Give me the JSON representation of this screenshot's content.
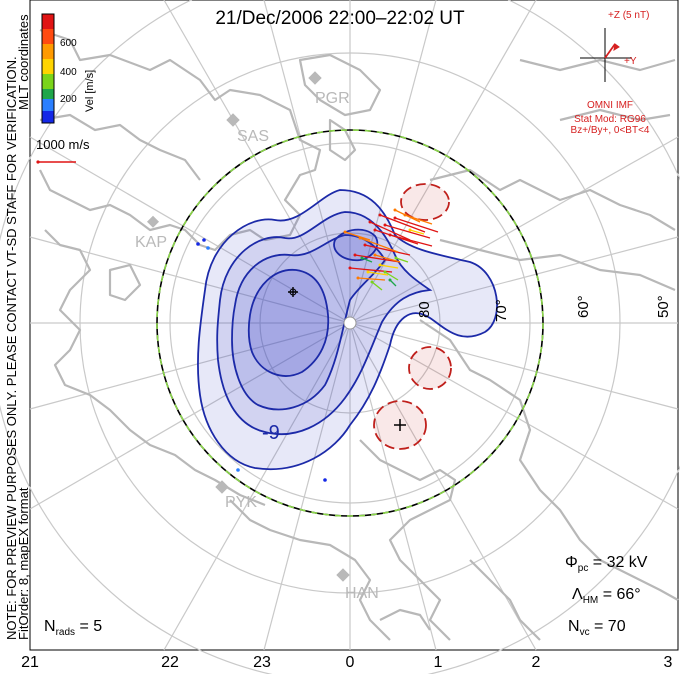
{
  "title": "21/Dec/2006 22:00–22:02 UT",
  "side_notes": {
    "line1": "NOTE: FOR PREVIEW PURPOSES ONLY. PLEASE CONTACT VT-SD STAFF FOR VERIFICATION.",
    "line2": "FitOrder: 8, mapEX format"
  },
  "coordinate_system": "MLT coordinates",
  "colorbar": {
    "label": "Vel [m/s]",
    "ticks": [
      "600",
      "400",
      "200"
    ],
    "colors": [
      "#e01414",
      "#ff7a00",
      "#ffd400",
      "#7ad41a",
      "#1fa64a",
      "#2a7fff",
      "#1428e6"
    ]
  },
  "velocity_scale": {
    "label": "1000 m/s"
  },
  "imf": {
    "scale_label": "+Z (5 nT)",
    "y_label": "+Y",
    "source": "OMNI IMF",
    "model": "Stat Mod: RG96",
    "condition": "Bz+/By+, 0<BT<4",
    "color": "#d62020"
  },
  "stations": [
    "PGR",
    "SAS",
    "KAP",
    "PYK",
    "HAN"
  ],
  "latitude_labels": [
    "80",
    "70°",
    "60°",
    "50°"
  ],
  "mlt_labels": [
    "21",
    "22",
    "23",
    "0",
    "1",
    "2",
    "3"
  ],
  "contour_label": "-9",
  "stats": {
    "phi_symbol": "Φ",
    "phi_sub": "pc",
    "phi_value": " = 32 kV",
    "lambda_symbol": "Λ",
    "lambda_sub": "HM",
    "lambda_value": " = 66°",
    "nvc_symbol": "N",
    "nvc_sub": "vc",
    "nvc_value": " = 70",
    "nrads_symbol": "N",
    "nrads_sub": "rads",
    "nrads_value": " = 5"
  },
  "colors": {
    "negative_cell_fill": "#3b45c8",
    "negative_cell_line": "#1c2aa8",
    "positive_cell_line": "#c0201c",
    "land": "#b8b8b8",
    "grid": "#c9c9c9"
  }
}
